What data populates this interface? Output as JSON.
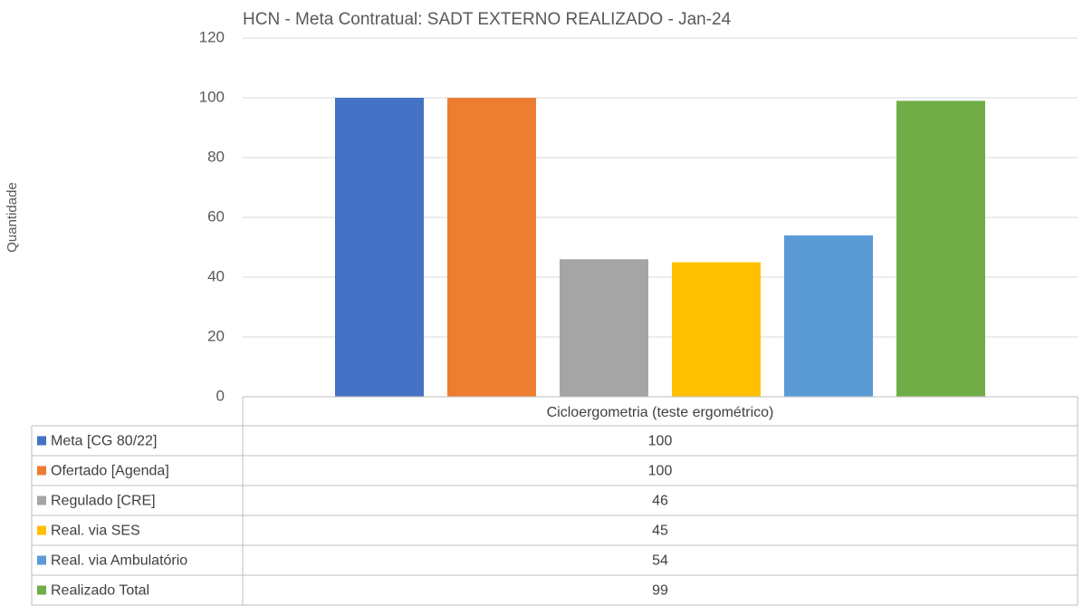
{
  "chart_data": {
    "type": "bar",
    "title": "HCN - Meta Contratual: SADT EXTERNO REALIZADO - Jan-24",
    "y_label": "Quantidade",
    "categories": [
      "Cicloergometria (teste ergométrico)"
    ],
    "series": [
      {
        "name": "Meta [CG 80/22]",
        "color": "#4472c4",
        "values": [
          100
        ]
      },
      {
        "name": "Ofertado [Agenda]",
        "color": "#ed7d31",
        "values": [
          100
        ]
      },
      {
        "name": "Regulado [CRE]",
        "color": "#a5a5a5",
        "values": [
          46
        ]
      },
      {
        "name": "Real. via SES",
        "color": "#ffc000",
        "values": [
          45
        ]
      },
      {
        "name": "Real. via Ambulatório",
        "color": "#5b9bd5",
        "values": [
          54
        ]
      },
      {
        "name": "Realizado Total",
        "color": "#70ad47",
        "values": [
          99
        ]
      }
    ],
    "ylim": [
      0,
      120
    ],
    "yticks": [
      0,
      20,
      40,
      60,
      80,
      100,
      120
    ],
    "grid": true,
    "data_table": true
  }
}
